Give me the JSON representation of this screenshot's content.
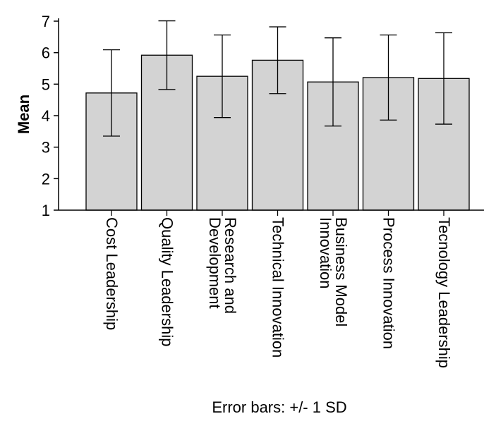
{
  "chart_data": {
    "type": "bar",
    "ylabel": "Mean",
    "xlabel": "",
    "ylim": [
      1,
      7
    ],
    "yticks": [
      1,
      2,
      3,
      4,
      5,
      6,
      7
    ],
    "grid": false,
    "bar_color": "#d3d3d3",
    "categories": [
      [
        "Cost Leadership"
      ],
      [
        "Quality Leadership"
      ],
      [
        "Research and",
        "Development"
      ],
      [
        "Technical Innovation"
      ],
      [
        "Business Model",
        "Innovation"
      ],
      [
        "Process Innovation"
      ],
      [
        "Tecnology Leadership"
      ]
    ],
    "values": [
      4.72,
      5.92,
      5.25,
      5.76,
      5.07,
      5.21,
      5.18
    ],
    "error_lower": [
      3.35,
      4.83,
      3.94,
      4.7,
      3.67,
      3.86,
      3.73
    ],
    "error_upper": [
      6.09,
      7.01,
      6.56,
      6.82,
      6.47,
      6.56,
      6.63
    ],
    "error_note": "Error bars: +/- 1 SD"
  }
}
